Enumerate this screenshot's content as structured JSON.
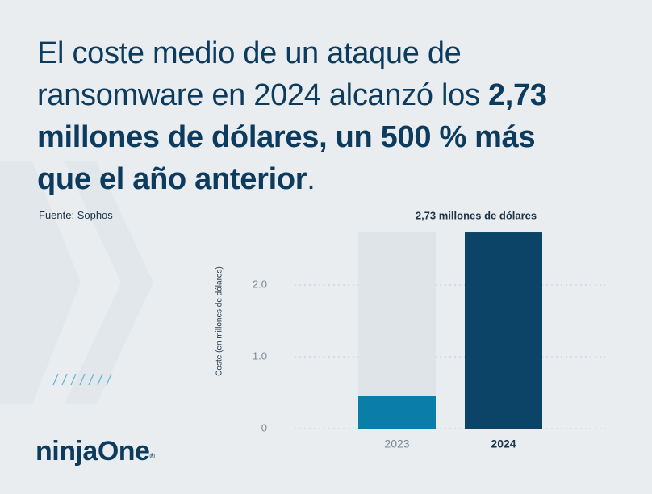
{
  "chart_data": {
    "type": "bar",
    "title": "El coste medio de un ataque de ransomware en 2024 alcanzó los",
    "title_bold": "2,73 millones de dólares, un 500 % más que el año anterior",
    "title_end": ".",
    "source": "Fuente: Sophos",
    "y_label": "Coste (en millones de dólares)",
    "categories": [
      "2023",
      "2024"
    ],
    "values": [
      0.45,
      2.73
    ],
    "value_labels": [
      null,
      "2,73 millones de dólares"
    ],
    "colors": [
      "#0a7ea8",
      "#0b4466"
    ],
    "ylim": [
      0,
      3
    ],
    "yticks": [
      0,
      {
        "value": 1,
        "label": "1.0"
      },
      {
        "value": 2,
        "label": "2.0"
      }
    ],
    "grid": true
  },
  "brand": {
    "name": "ninjaOne",
    "mark": "®"
  }
}
